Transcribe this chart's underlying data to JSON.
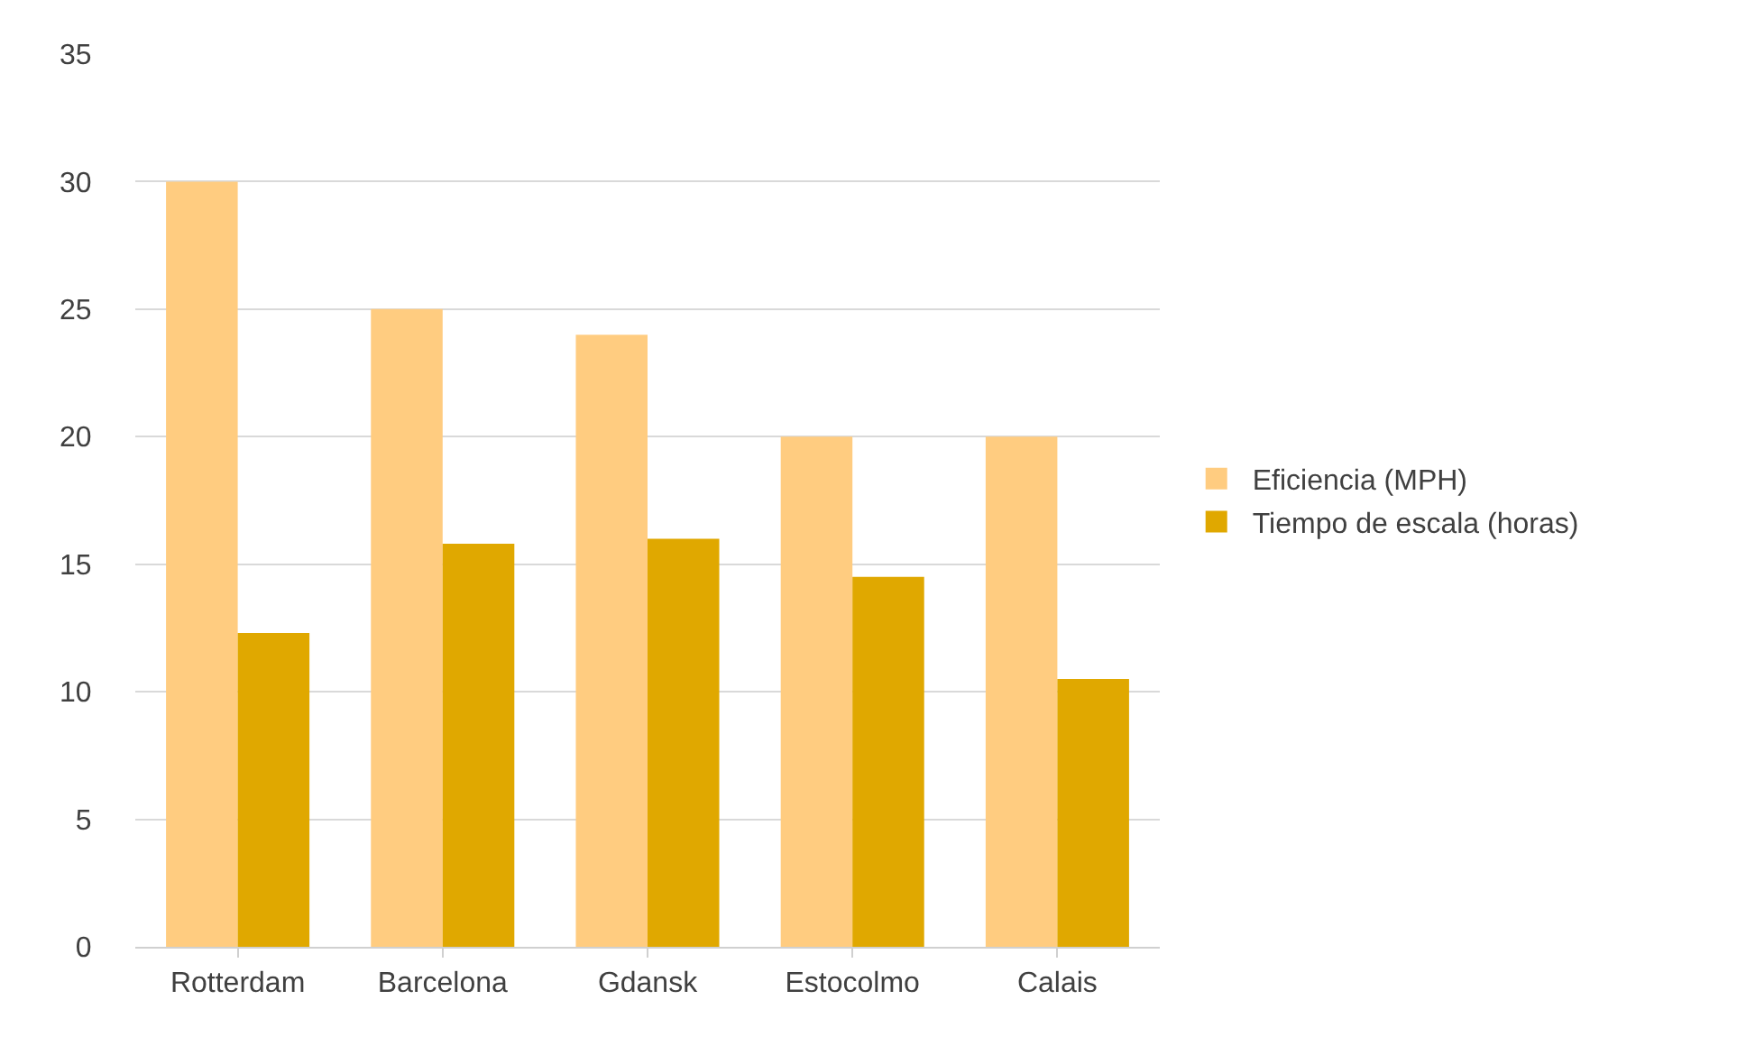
{
  "chart_data": {
    "type": "bar",
    "categories": [
      "Rotterdam",
      "Barcelona",
      "Gdansk",
      "Estocolmo",
      "Calais"
    ],
    "series": [
      {
        "name": "Eficiencia (MPH)",
        "color": "#ffcc80",
        "values": [
          30,
          25,
          24,
          20,
          20
        ]
      },
      {
        "name": "Tiempo de escala (horas)",
        "color": "#e0a800",
        "values": [
          12.3,
          15.8,
          16,
          14.5,
          10.5
        ]
      }
    ],
    "ylim": [
      0,
      35
    ],
    "yticks": [
      0,
      5,
      10,
      15,
      20,
      25,
      30,
      35
    ],
    "grid": "y",
    "legend": "right"
  }
}
